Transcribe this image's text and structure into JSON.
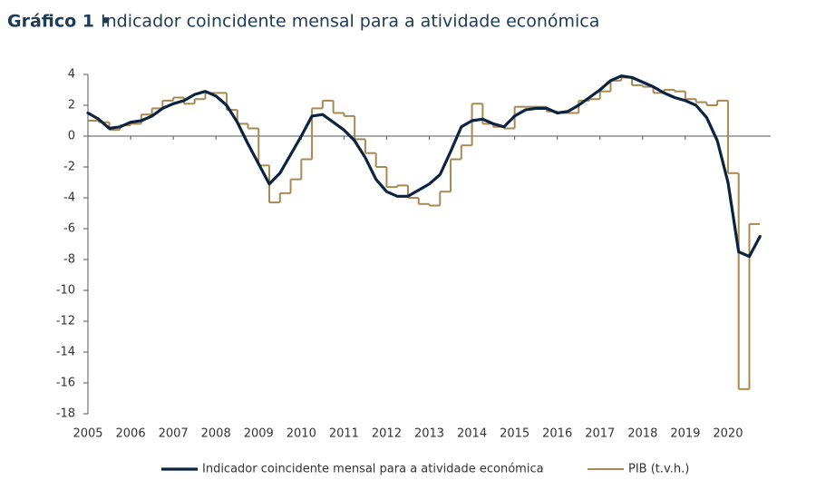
{
  "chart_data": {
    "type": "line",
    "title_label": "Gráfico 1 •",
    "title": "Indicador coincidente mensal para a atividade económica",
    "x": [
      2005,
      2005.25,
      2005.5,
      2005.75,
      2006,
      2006.25,
      2006.5,
      2006.75,
      2007,
      2007.25,
      2007.5,
      2007.75,
      2008,
      2008.25,
      2008.5,
      2008.75,
      2009,
      2009.25,
      2009.5,
      2009.75,
      2010,
      2010.25,
      2010.5,
      2010.75,
      2011,
      2011.25,
      2011.5,
      2011.75,
      2012,
      2012.25,
      2012.5,
      2012.75,
      2013,
      2013.25,
      2013.5,
      2013.75,
      2014,
      2014.25,
      2014.5,
      2014.75,
      2015,
      2015.25,
      2015.5,
      2015.75,
      2016,
      2016.25,
      2016.5,
      2016.75,
      2017,
      2017.25,
      2017.5,
      2017.75,
      2018,
      2018.25,
      2018.5,
      2018.75,
      2019,
      2019.25,
      2019.5,
      2019.75,
      2020,
      2020.25,
      2020.5,
      2020.75
    ],
    "series": [
      {
        "name": "Indicador coincidente mensal para a atividade económica",
        "color": "#0c2340",
        "drawstyle": "default",
        "values": [
          1.5,
          1.1,
          0.5,
          0.6,
          0.9,
          1.0,
          1.3,
          1.8,
          2.1,
          2.3,
          2.7,
          2.9,
          2.6,
          2.0,
          0.9,
          -0.5,
          -1.8,
          -3.1,
          -2.4,
          -1.2,
          0.0,
          1.3,
          1.4,
          0.9,
          0.4,
          -0.3,
          -1.4,
          -2.8,
          -3.6,
          -3.9,
          -3.9,
          -3.5,
          -3.1,
          -2.5,
          -1.0,
          0.6,
          1.0,
          1.1,
          0.8,
          0.6,
          1.3,
          1.7,
          1.8,
          1.8,
          1.5,
          1.6,
          2.0,
          2.5,
          3.0,
          3.6,
          3.9,
          3.8,
          3.5,
          3.2,
          2.8,
          2.5,
          2.3,
          2.0,
          1.2,
          -0.3,
          -3.0,
          -7.5,
          -7.8,
          -6.5
        ]
      },
      {
        "name": "PIB (t.v.h.)",
        "color": "#a68a52",
        "drawstyle": "steps-post",
        "values": [
          1.0,
          0.9,
          0.4,
          0.7,
          0.8,
          1.4,
          1.8,
          2.3,
          2.5,
          2.1,
          2.4,
          2.8,
          2.8,
          1.7,
          0.8,
          0.5,
          -1.9,
          -4.3,
          -3.7,
          -2.8,
          -1.5,
          1.8,
          2.3,
          1.5,
          1.3,
          -0.2,
          -1.1,
          -2.0,
          -3.3,
          -3.2,
          -4.0,
          -4.4,
          -4.5,
          -3.6,
          -1.5,
          -0.6,
          2.1,
          0.8,
          0.6,
          0.5,
          1.9,
          1.9,
          1.9,
          1.6,
          1.5,
          1.5,
          2.3,
          2.4,
          2.9,
          3.6,
          3.8,
          3.3,
          3.2,
          2.8,
          3.0,
          2.9,
          2.4,
          2.2,
          2.0,
          2.3,
          -2.4,
          -16.4,
          -5.7,
          null
        ]
      }
    ],
    "xlim": [
      2005,
      2021
    ],
    "xticks": [
      2005,
      2006,
      2007,
      2008,
      2009,
      2010,
      2011,
      2012,
      2013,
      2014,
      2015,
      2016,
      2017,
      2018,
      2019,
      2020
    ],
    "ylim": [
      -18,
      4
    ],
    "yticks": [
      -18,
      -16,
      -14,
      -12,
      -10,
      -8,
      -6,
      -4,
      -2,
      0,
      2,
      4
    ],
    "grid": false,
    "legend": "bottom"
  }
}
